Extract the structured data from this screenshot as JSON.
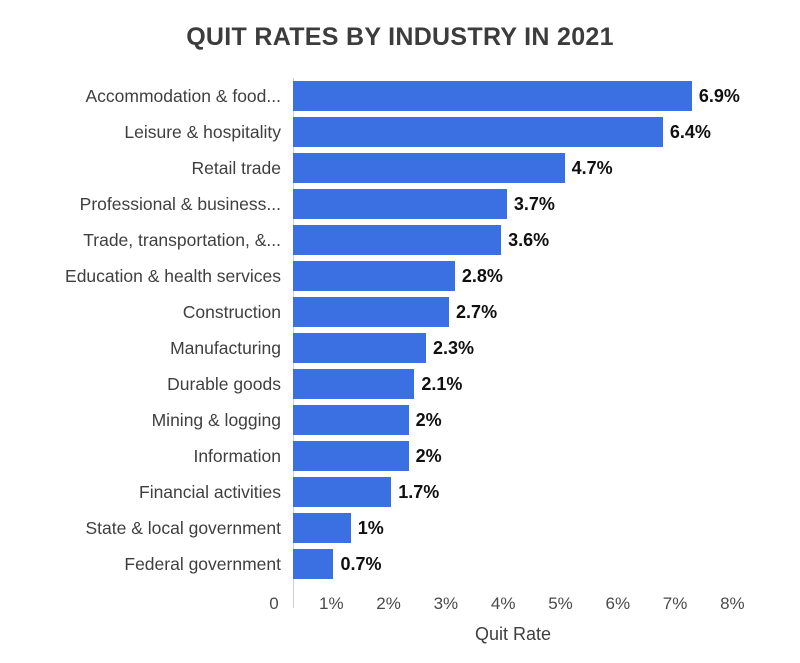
{
  "title": "QUIT RATES BY INDUSTRY IN 2021",
  "chart_data": {
    "type": "bar",
    "orientation": "horizontal",
    "title": "QUIT RATES BY INDUSTRY IN 2021",
    "categories": [
      "Accommodation & food...",
      "Leisure & hospitality",
      "Retail trade",
      "Professional & business...",
      "Trade, transportation, &...",
      "Education & health services",
      "Construction",
      "Manufacturing",
      "Durable goods",
      "Mining & logging",
      "Information",
      "Financial activities",
      "State & local government",
      "Federal government"
    ],
    "values": [
      6.9,
      6.4,
      4.7,
      3.7,
      3.6,
      2.8,
      2.7,
      2.3,
      2.1,
      2,
      2,
      1.7,
      1,
      0.7
    ],
    "value_labels": [
      "6.9%",
      "6.4%",
      "4.7%",
      "3.7%",
      "3.6%",
      "2.8%",
      "2.7%",
      "2.3%",
      "2.1%",
      "2%",
      "2%",
      "1.7%",
      "1%",
      "0.7%"
    ],
    "xlabel": "Quit Rate",
    "ylabel": "",
    "xlim": [
      0,
      8
    ],
    "x_ticks": [
      "0",
      "1%",
      "2%",
      "3%",
      "4%",
      "5%",
      "6%",
      "7%",
      "8%"
    ],
    "grid": false,
    "legend": false,
    "colors": {
      "bar": "#3b70e2",
      "title": "#3c3c3c",
      "category_label": "#3f3f3f",
      "value_label": "#101010",
      "tick_label": "#4a4a4a",
      "axis_line": "#cfcfcf",
      "background": "#ffffff"
    }
  }
}
